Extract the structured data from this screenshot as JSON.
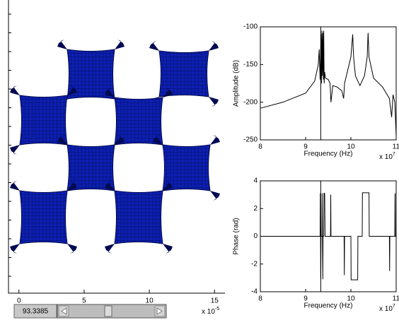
{
  "chart_data": [
    {
      "type": "mesh",
      "xlim": [
        -0.8,
        15.8
      ],
      "xticks": [
        0,
        5,
        10,
        15
      ],
      "x_multiplier": {
        "base": "x 10",
        "exponent": "-5"
      },
      "color": "#0a1aa0"
    },
    {
      "type": "line",
      "ylabel": "Amplitude (dB)",
      "xlabel": "Frequency (Hz)",
      "x_multiplier": {
        "base": "x 10",
        "exponent": "7"
      },
      "xlim": [
        8,
        11
      ],
      "xticks": [
        8,
        9,
        10,
        11
      ],
      "ylim": [
        -250,
        -100
      ],
      "yticks": [
        -250,
        -200,
        -150,
        -100
      ],
      "cursor_x": 9.33385,
      "color": "#000000",
      "x": [
        8,
        8.5,
        9,
        9.2,
        9.28,
        9.3,
        9.32,
        9.34,
        9.35,
        9.36,
        9.37,
        9.38,
        9.39,
        9.4,
        9.41,
        9.42,
        9.44,
        9.5,
        9.54,
        9.56,
        9.6,
        9.7,
        9.8,
        9.84,
        9.86,
        9.9,
        10,
        10.04,
        10.06,
        10.1,
        10.2,
        10.3,
        10.36,
        10.38,
        10.4,
        10.5,
        10.7,
        10.85,
        10.9,
        10.93,
        10.97,
        11
      ],
      "values": [
        -208,
        -200,
        -188,
        -172,
        -150,
        -130,
        -170,
        -110,
        -175,
        -105,
        -165,
        -108,
        -170,
        -105,
        -175,
        -160,
        -168,
        -170,
        -175,
        -200,
        -178,
        -180,
        -185,
        -195,
        -175,
        -165,
        -140,
        -110,
        -140,
        -165,
        -178,
        -165,
        -140,
        -108,
        -140,
        -168,
        -180,
        -195,
        -220,
        -190,
        -200,
        -245
      ]
    },
    {
      "type": "line",
      "ylabel": "Phase (rad)",
      "xlabel": "Frequency (Hz)",
      "x_multiplier": {
        "base": "x 10",
        "exponent": "7"
      },
      "xlim": [
        8,
        11
      ],
      "xticks": [
        8,
        9,
        10,
        11
      ],
      "ylim": [
        -4,
        4
      ],
      "yticks": [
        -4,
        -2,
        0,
        2,
        4
      ],
      "cursor_x": 9.33385,
      "color": "#000000",
      "x": [
        8,
        9.32,
        9.325,
        9.335,
        9.34,
        9.36,
        9.365,
        9.38,
        9.385,
        9.4,
        9.405,
        9.42,
        9.43,
        9.55,
        9.555,
        9.56,
        9.85,
        9.855,
        9.86,
        10,
        10.005,
        10.15,
        10.155,
        10.25,
        10.255,
        10.4,
        10.405,
        10.85,
        10.855,
        10.86,
        10.97,
        10.975,
        10.98,
        11
      ],
      "values": [
        0,
        0,
        3.1,
        -3.1,
        0,
        0,
        3.1,
        -3.1,
        0,
        0,
        3.1,
        3.1,
        0,
        0,
        3,
        0,
        0,
        -2.8,
        0,
        0,
        -3.14,
        -3.14,
        0,
        0,
        3.14,
        3.14,
        0,
        0,
        -2.5,
        0,
        0,
        3.1,
        0,
        0
      ]
    }
  ],
  "slider": {
    "value": "93.3385"
  }
}
